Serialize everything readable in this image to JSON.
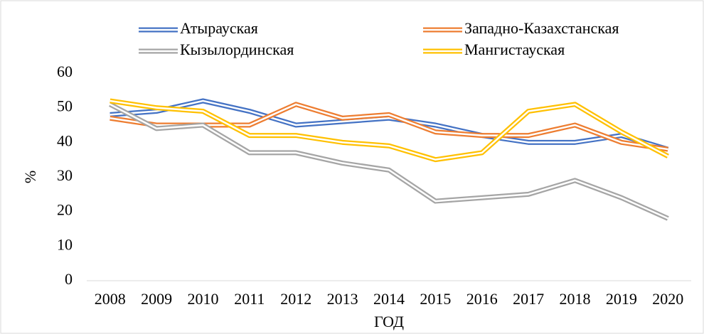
{
  "chart_data": {
    "type": "line",
    "categories": [
      "2008",
      "2009",
      "2010",
      "2011",
      "2012",
      "2013",
      "2014",
      "2015",
      "2016",
      "2017",
      "2018",
      "2019",
      "2020"
    ],
    "series": [
      {
        "name": "Атырауская",
        "color": "#4472c4",
        "values": [
          48,
          49,
          52,
          49,
          45,
          46,
          47,
          45,
          42,
          40,
          40,
          42,
          38
        ]
      },
      {
        "name": "Западно-Казахстанская",
        "color": "#ed7d31",
        "values": [
          47,
          45,
          45,
          45,
          51,
          47,
          48,
          43,
          42,
          42,
          45,
          40,
          38
        ]
      },
      {
        "name": "Кызылординская",
        "color": "#a5a5a5",
        "values": [
          51,
          44,
          45,
          37,
          37,
          34,
          32,
          23,
          24,
          25,
          29,
          24,
          18
        ]
      },
      {
        "name": "Мангистауская",
        "color": "#ffc000",
        "values": [
          52,
          50,
          49,
          42,
          42,
          40,
          39,
          35,
          37,
          49,
          51,
          43,
          36
        ]
      }
    ],
    "xlabel": "ГОД",
    "ylabel": "%",
    "ylim": [
      0,
      60
    ],
    "yticks": [
      0,
      10,
      20,
      30,
      40,
      50,
      60
    ],
    "grid": false
  }
}
